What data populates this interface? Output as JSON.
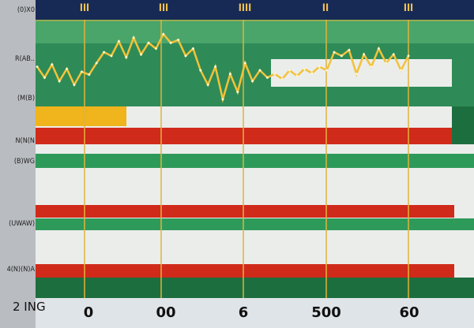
{
  "chart_data": {
    "type": "line",
    "title": "",
    "xlabel": "",
    "ylabel": "",
    "top_labels": [
      "lll",
      "lll",
      "llll",
      "ll",
      "lll"
    ],
    "x_tick_labels": [
      "0",
      "00",
      "6",
      "500",
      "60"
    ],
    "y_tick_labels": [
      "(0)X0",
      "R(AB..",
      "(M(B)",
      "N(N(N",
      "(B)WG",
      "(UWAW)",
      "4(N)(N)A",
      "2"
    ],
    "corner_label": "2 ING",
    "grid": true,
    "ylim": [
      0,
      120
    ],
    "series": [
      {
        "color": "#f3c23a",
        "x": [
          0,
          2,
          4,
          6,
          8,
          10,
          12,
          14,
          16,
          18,
          20,
          22,
          24,
          26,
          28,
          30,
          32,
          34,
          36,
          38,
          40,
          42,
          44,
          46,
          48,
          50,
          52,
          54,
          56,
          58,
          60,
          62,
          64,
          66,
          68,
          70,
          72,
          74,
          76,
          78,
          80,
          82,
          84,
          86,
          88,
          90,
          92,
          94,
          96,
          98,
          100
        ],
        "values": [
          55,
          40,
          58,
          35,
          52,
          30,
          48,
          44,
          60,
          75,
          70,
          90,
          68,
          95,
          72,
          88,
          80,
          100,
          88,
          92,
          70,
          80,
          50,
          30,
          55,
          10,
          45,
          20,
          60,
          35,
          50,
          40,
          45,
          38,
          50,
          42,
          52,
          46,
          55,
          50,
          75,
          70,
          78,
          45,
          72,
          55,
          80,
          60,
          72,
          50,
          70
        ]
      }
    ],
    "bands": [
      {
        "color": "#2e8b57"
      },
      {
        "color": "#f0b41c"
      },
      {
        "color": "#d02a1a"
      },
      {
        "color": "#2e9a5a"
      },
      {
        "color": "#d02a1a"
      },
      {
        "color": "#2e9a5a"
      },
      {
        "color": "#d02a1a"
      },
      {
        "color": "#1d6e3e"
      }
    ],
    "colors": {
      "header": "#172a55",
      "axis_panel": "#9a9da2",
      "gridline": "#e0b43a",
      "white_band": "#ebedeb"
    }
  }
}
